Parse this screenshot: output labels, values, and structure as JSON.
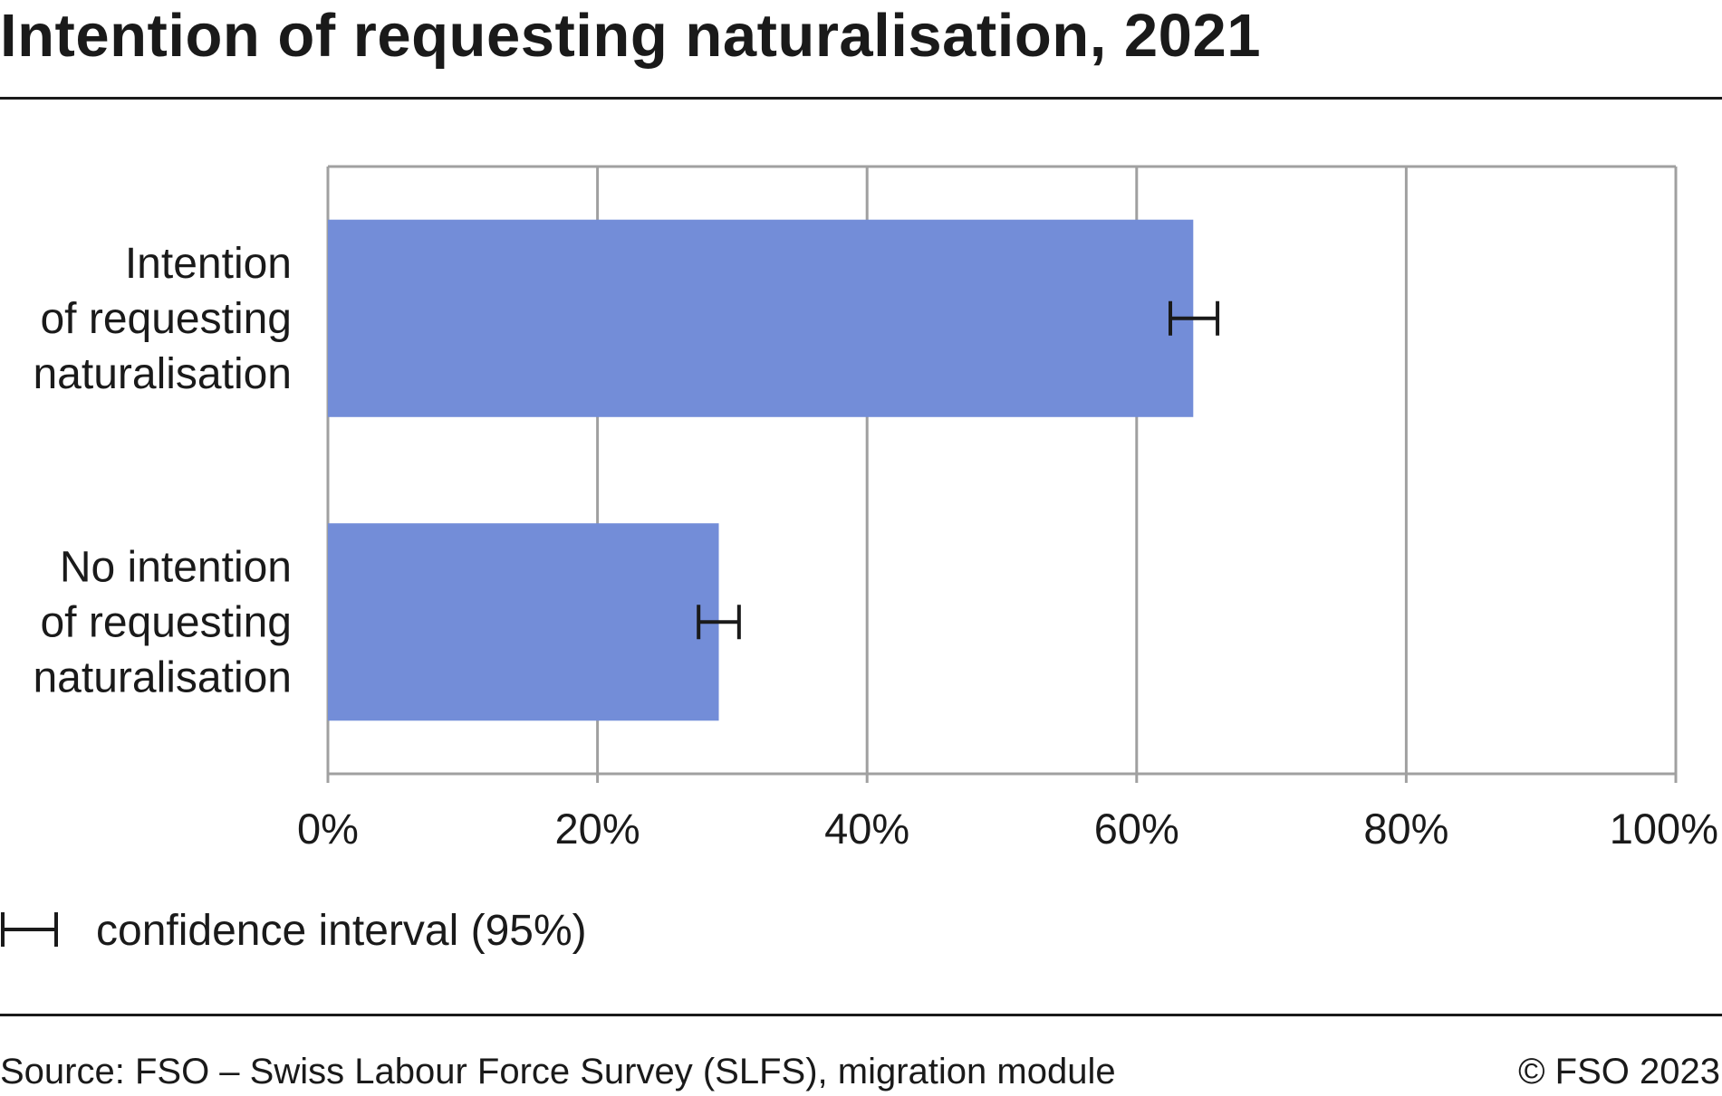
{
  "chart_data": {
    "type": "bar",
    "orientation": "horizontal",
    "title": "Intention of requesting naturalisation, 2021",
    "categories": [
      "Intention of requesting naturalisation",
      "No intention of requesting naturalisation"
    ],
    "category_lines": [
      [
        "Intention",
        "of requesting",
        "naturalisation"
      ],
      [
        "No intention",
        "of requesting",
        "naturalisation"
      ]
    ],
    "values": [
      64.2,
      29.0
    ],
    "confidence_intervals": [
      [
        62.5,
        66.0
      ],
      [
        27.5,
        30.5
      ]
    ],
    "xlim": [
      0,
      100
    ],
    "x_ticks": [
      0,
      20,
      40,
      60,
      80,
      100
    ],
    "x_tick_labels": [
      "0%",
      "20%",
      "40%",
      "60%",
      "80%",
      "100%"
    ],
    "grid": true,
    "bar_color": "#738dd8",
    "legend": {
      "position": "bottom-left",
      "label": "confidence interval (95%)"
    }
  },
  "footer": {
    "source": "Source: FSO – Swiss Labour Force Survey (SLFS), migration module",
    "copyright": "© FSO 2023"
  }
}
